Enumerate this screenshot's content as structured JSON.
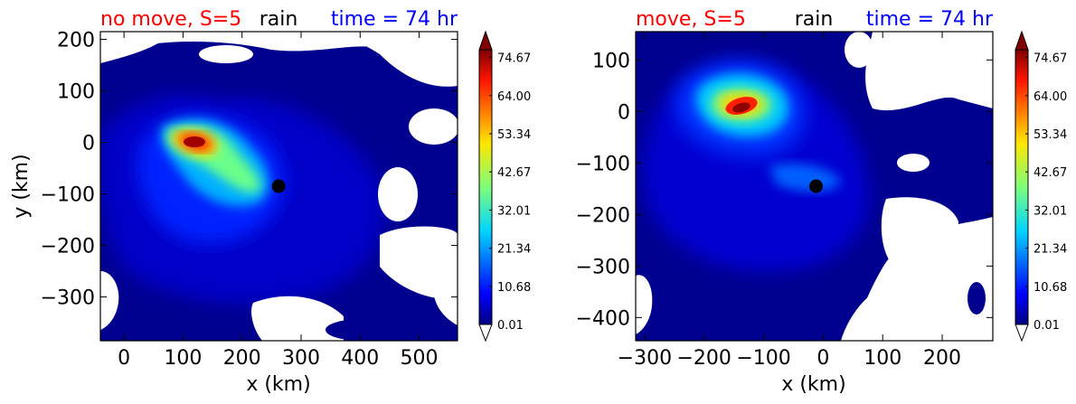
{
  "chart_data": [
    {
      "type": "heatmap",
      "title_left": "no move, S=5",
      "title_center": "rain",
      "title_right": "time = 74 hr",
      "title_colors": {
        "left": "#ff0000",
        "center": "#000000",
        "right": "#0000ff"
      },
      "xlabel": "x (km)",
      "ylabel": "y (km)",
      "xlim": [
        -40,
        565
      ],
      "ylim": [
        -385,
        215
      ],
      "xticks": [
        0,
        100,
        200,
        300,
        400,
        500
      ],
      "xtick_labels": [
        "0",
        "100",
        "200",
        "300",
        "400",
        "500"
      ],
      "yticks": [
        200,
        100,
        0,
        -100,
        -200,
        -300
      ],
      "ytick_labels": [
        "200",
        "100",
        "0",
        "−100",
        "−200",
        "−300"
      ],
      "marker": {
        "x": 262,
        "y": -85,
        "color": "#000000"
      },
      "rain_peak": {
        "x": 125,
        "y": 0,
        "value": 80
      },
      "colorbar": {
        "tick_values": [
          0.01,
          10.68,
          21.34,
          32.01,
          42.67,
          53.34,
          64.0,
          74.67
        ],
        "tick_labels": [
          "0.01",
          "10.68",
          "21.34",
          "32.01",
          "42.67",
          "53.34",
          "64.00",
          "74.67"
        ],
        "extend": "both"
      }
    },
    {
      "type": "heatmap",
      "title_left": "move, S=5",
      "title_center": "rain",
      "title_right": "time = 74 hr",
      "title_colors": {
        "left": "#ff0000",
        "center": "#000000",
        "right": "#0000ff"
      },
      "xlabel": "x (km)",
      "ylabel": "",
      "xlim": [
        -315,
        285
      ],
      "ylim": [
        -445,
        155
      ],
      "xticks": [
        -300,
        -200,
        -100,
        0,
        100,
        200
      ],
      "xtick_labels": [
        "−300",
        "−200",
        "−100",
        "0",
        "100",
        "200"
      ],
      "yticks": [
        100,
        0,
        -100,
        -200,
        -300,
        -400
      ],
      "ytick_labels": [
        "100",
        "0",
        "−100",
        "−200",
        "−300",
        "−400"
      ],
      "marker": {
        "x": -12,
        "y": -145,
        "color": "#000000"
      },
      "rain_peak": {
        "x": -120,
        "y": 5,
        "value": 80
      },
      "colorbar": {
        "tick_values": [
          0.01,
          10.68,
          21.34,
          32.01,
          42.67,
          53.34,
          64.0,
          74.67
        ],
        "tick_labels": [
          "0.01",
          "10.68",
          "21.34",
          "32.01",
          "42.67",
          "53.34",
          "64.00",
          "74.67"
        ],
        "extend": "both"
      }
    }
  ]
}
